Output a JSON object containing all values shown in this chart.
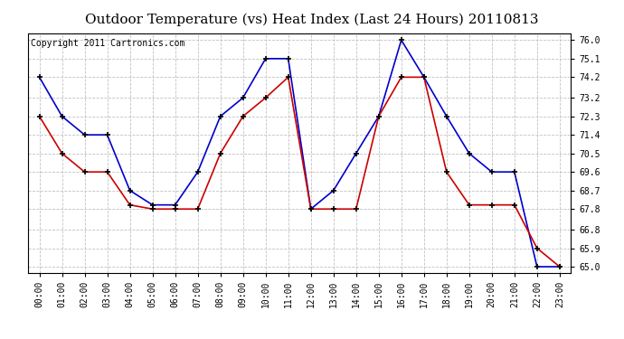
{
  "title": "Outdoor Temperature (vs) Heat Index (Last 24 Hours) 20110813",
  "copyright_text": "Copyright 2011 Cartronics.com",
  "x_labels": [
    "00:00",
    "01:00",
    "02:00",
    "03:00",
    "04:00",
    "05:00",
    "06:00",
    "07:00",
    "08:00",
    "09:00",
    "10:00",
    "11:00",
    "12:00",
    "13:00",
    "14:00",
    "15:00",
    "16:00",
    "17:00",
    "18:00",
    "19:00",
    "20:00",
    "21:00",
    "22:00",
    "23:00"
  ],
  "blue_data": [
    74.2,
    72.3,
    71.4,
    71.4,
    68.7,
    68.0,
    68.0,
    69.6,
    72.3,
    73.2,
    75.1,
    75.1,
    67.8,
    68.7,
    70.5,
    72.3,
    76.0,
    74.2,
    72.3,
    70.5,
    69.6,
    69.6,
    65.0,
    65.0
  ],
  "red_data": [
    72.3,
    70.5,
    69.6,
    69.6,
    68.0,
    67.8,
    67.8,
    67.8,
    70.5,
    72.3,
    73.2,
    74.2,
    67.8,
    67.8,
    67.8,
    72.3,
    74.2,
    74.2,
    69.6,
    68.0,
    68.0,
    68.0,
    65.9,
    65.0
  ],
  "ylim": [
    64.7,
    76.3
  ],
  "yticks": [
    65.0,
    65.9,
    66.8,
    67.8,
    68.7,
    69.6,
    70.5,
    71.4,
    72.3,
    73.2,
    74.2,
    75.1,
    76.0
  ],
  "blue_color": "#0000cc",
  "red_color": "#cc0000",
  "background_color": "#ffffff",
  "plot_bg_color": "#ffffff",
  "grid_color": "#bbbbbb",
  "title_fontsize": 11,
  "copyright_fontsize": 7,
  "tick_fontsize": 7,
  "line_width": 1.2,
  "marker_size": 5
}
